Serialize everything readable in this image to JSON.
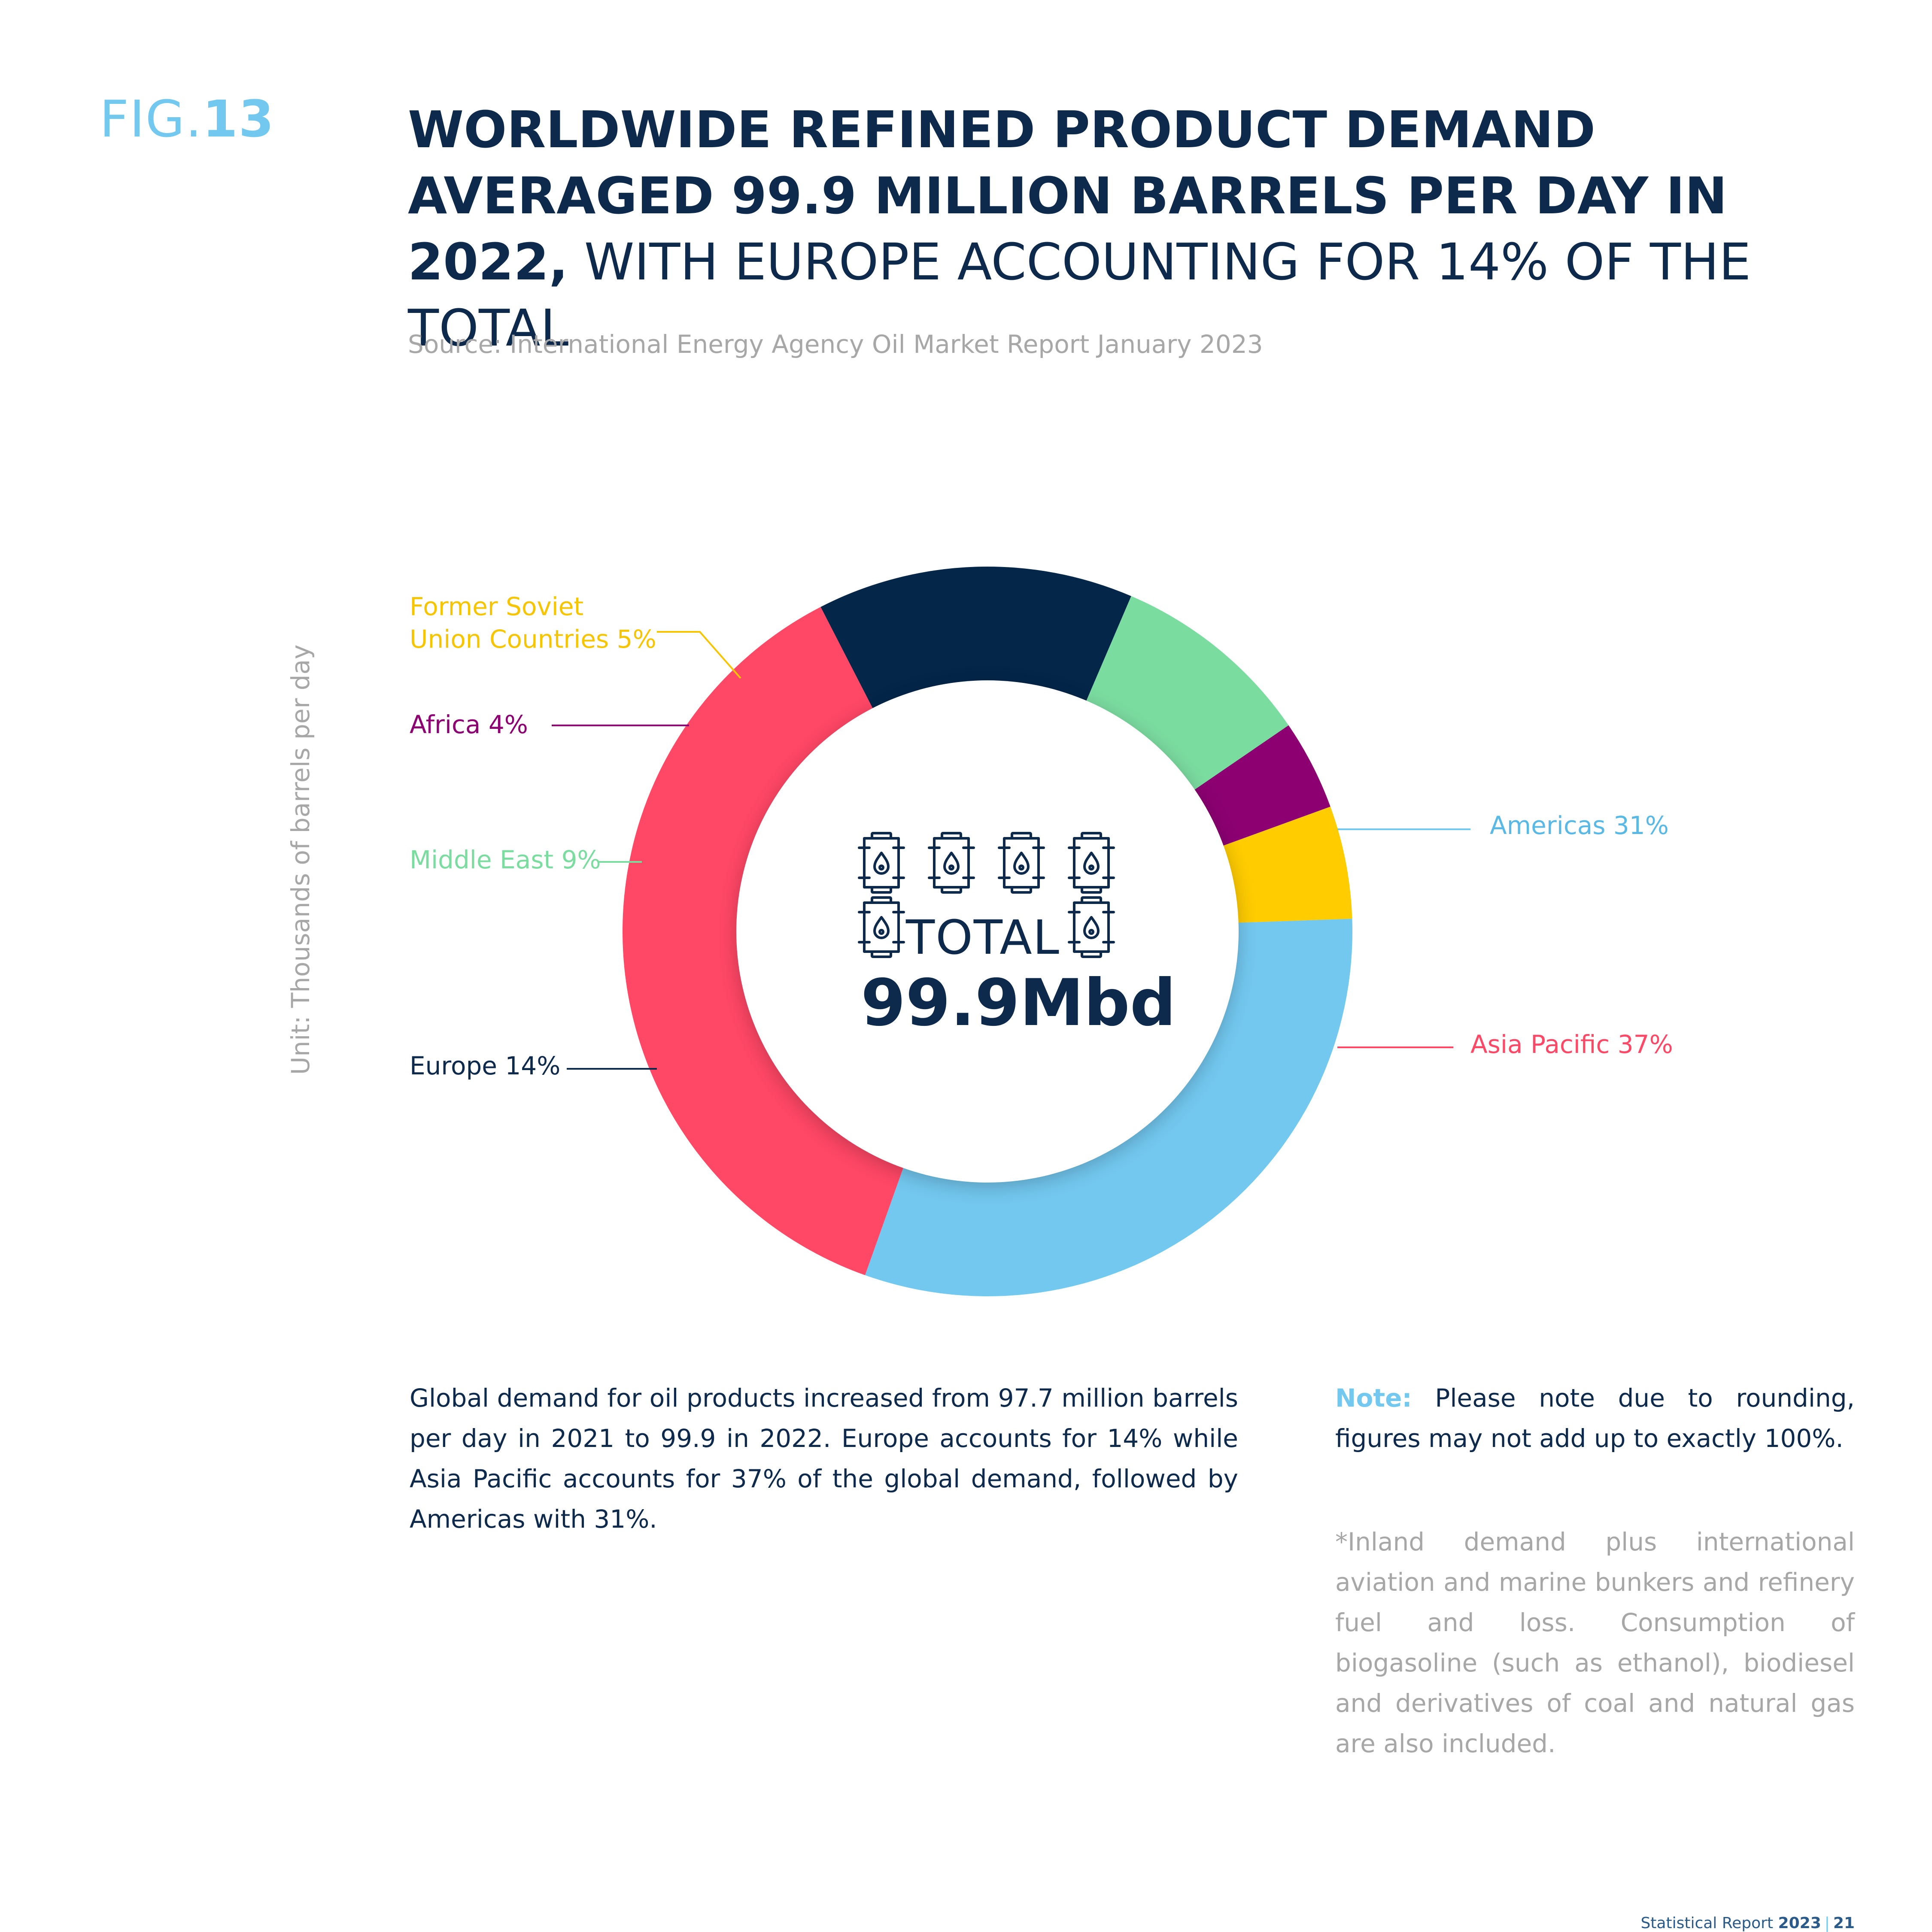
{
  "figure": {
    "prefix": "FIG.",
    "number": "13"
  },
  "title": {
    "bold_part": "WORLDWIDE REFINED PRODUCT DEMAND AVERAGED 99.9 MILLION BARRELS PER DAY IN 2022,",
    "regular_part": " WITH EUROPE ACCOUNTING FOR 14% OF THE TOTAL"
  },
  "source": "Source:  International Energy Agency Oil Market Report January 2023",
  "unit_label": "Unit: Thousands of barrels per day",
  "chart_data": {
    "type": "pie",
    "donut": true,
    "start_angle_deg": 88,
    "direction": "clockwise",
    "series": [
      {
        "name": "Americas",
        "value": 31,
        "label": "Americas 31%",
        "color": "#73c8f0"
      },
      {
        "name": "Asia Pacific",
        "value": 37,
        "label": "Asia Pacific 37%",
        "color": "#ff4766"
      },
      {
        "name": "Europe",
        "value": 14,
        "label": "Europe 14%",
        "color": "#032649"
      },
      {
        "name": "Middle East",
        "value": 9,
        "label": "Middle East 9%",
        "color": "#7bdca0"
      },
      {
        "name": "Africa",
        "value": 4,
        "label": "Africa 4%",
        "color": "#8c0072"
      },
      {
        "name": "Former Soviet Union Countries",
        "value": 5,
        "label_line1": "Former Soviet",
        "label_line2": "Union Countries 5%",
        "color": "#ffcc00"
      }
    ],
    "center": {
      "label": "TOTAL",
      "value": "99.9Mbd"
    }
  },
  "icons": {
    "barrel": "oil-barrel-icon"
  },
  "body_text": "Global demand for oil products increased from 97.7 million barrels per day in 2021 to 99.9 in 2022. Europe accounts for 14% while Asia Pacific accounts for 37% of the global demand, followed by Americas with 31%.",
  "note": {
    "label": "Note:",
    "text": " Please note due to rounding, figures may not add up to exactly 100%."
  },
  "footnote": "*Inland demand plus international aviation and marine bunkers and refinery fuel and loss. Consumption of biogasoline (such as ethanol), biodiesel and derivatives of coal and natural gas are also included.",
  "page_footer": {
    "report": "Statistical Report ",
    "year": "2023",
    "separator": "|",
    "page": "21"
  }
}
